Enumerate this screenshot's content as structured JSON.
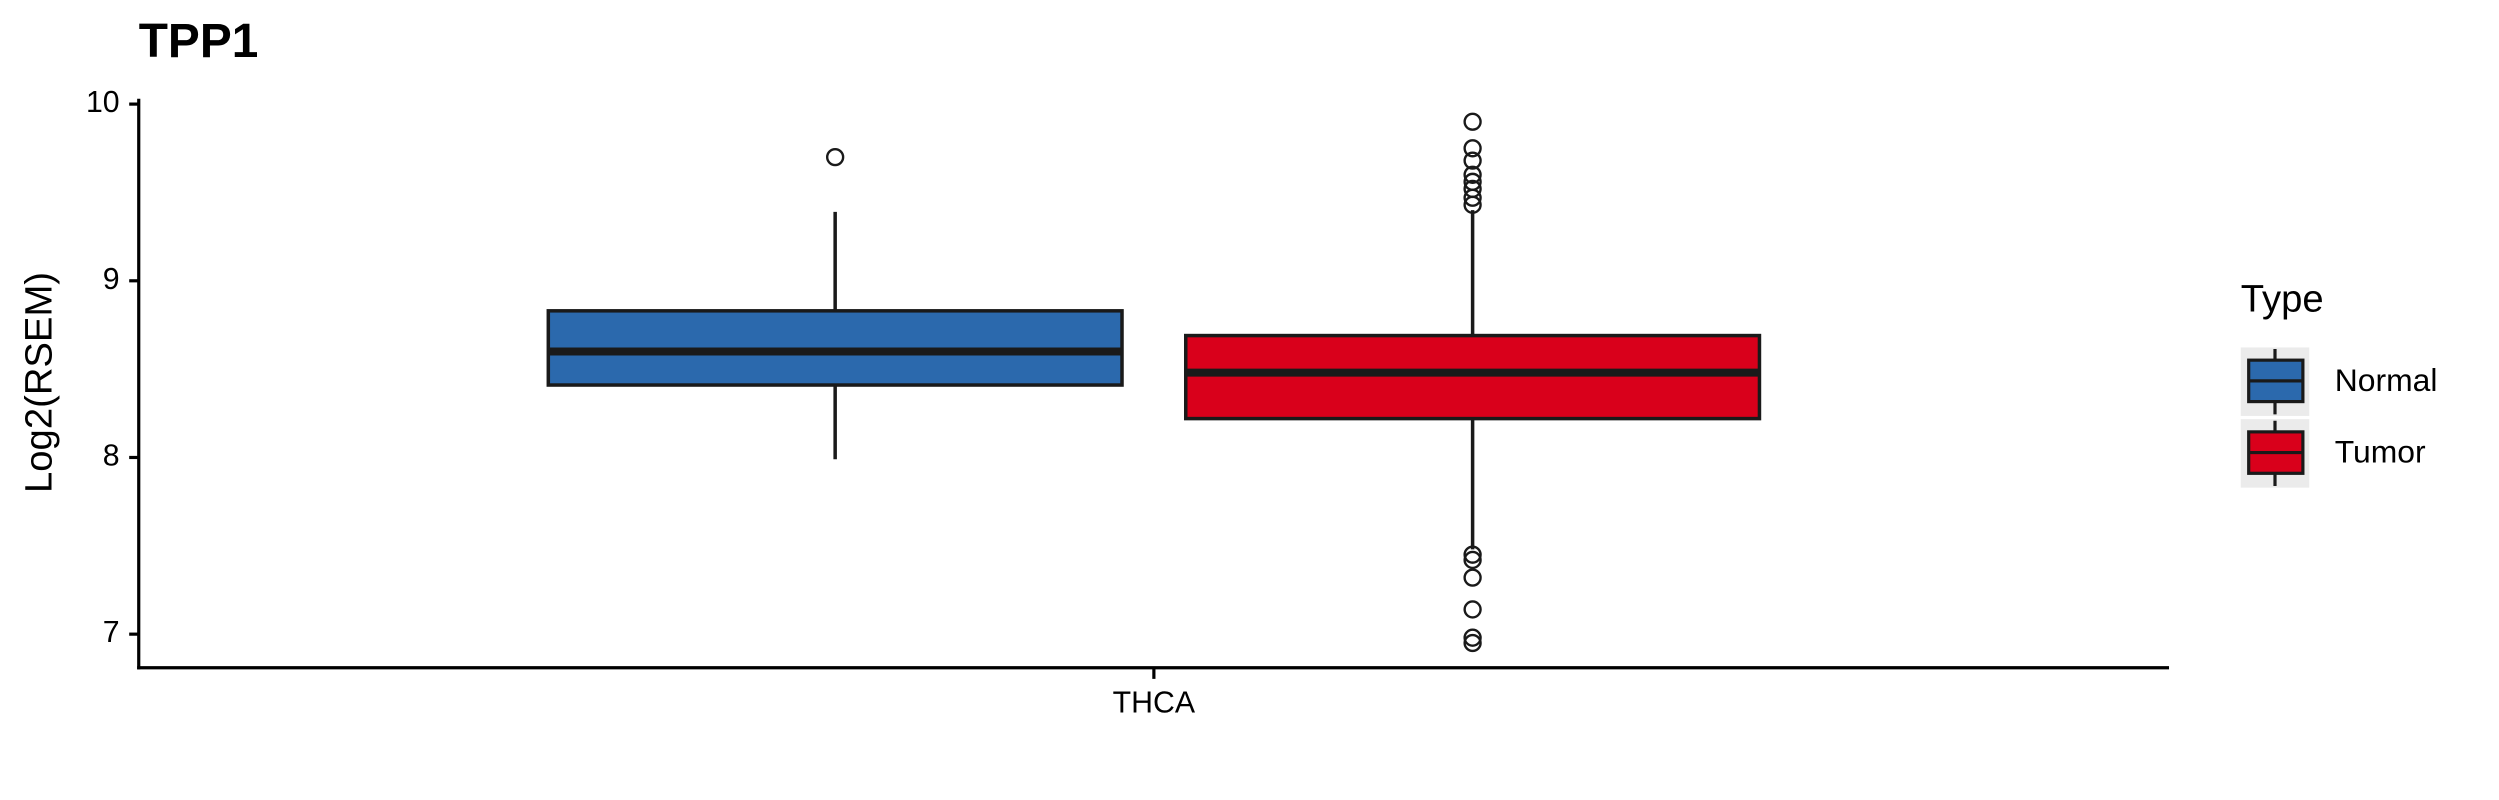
{
  "chart_data": {
    "type": "box",
    "title": "TPP1",
    "y_label": "Log2(RSEM)",
    "categories": [
      "THCA"
    ],
    "legend_title": "Type",
    "series": [
      {
        "name": "Normal",
        "color": "#2b69ad",
        "min": [
          7.99
        ],
        "q1": [
          8.41
        ],
        "median": [
          8.6
        ],
        "q3": [
          8.83
        ],
        "max": [
          9.39
        ],
        "outliers": [
          [
            9.7
          ]
        ]
      },
      {
        "name": "Tumor",
        "color": "#d9001b",
        "min": [
          7.48
        ],
        "q1": [
          8.22
        ],
        "median": [
          8.48
        ],
        "q3": [
          8.69
        ],
        "max": [
          9.4
        ],
        "outliers": [
          [
            9.43,
            9.47,
            9.52,
            9.56,
            9.6,
            9.68,
            9.75,
            9.9,
            7.45,
            7.42,
            7.32,
            7.14,
            6.98,
            6.95
          ]
        ]
      }
    ],
    "ylim": [
      6.81,
      10.03
    ],
    "yticks": [
      7,
      8,
      9,
      10
    ],
    "legend_position": "right"
  }
}
